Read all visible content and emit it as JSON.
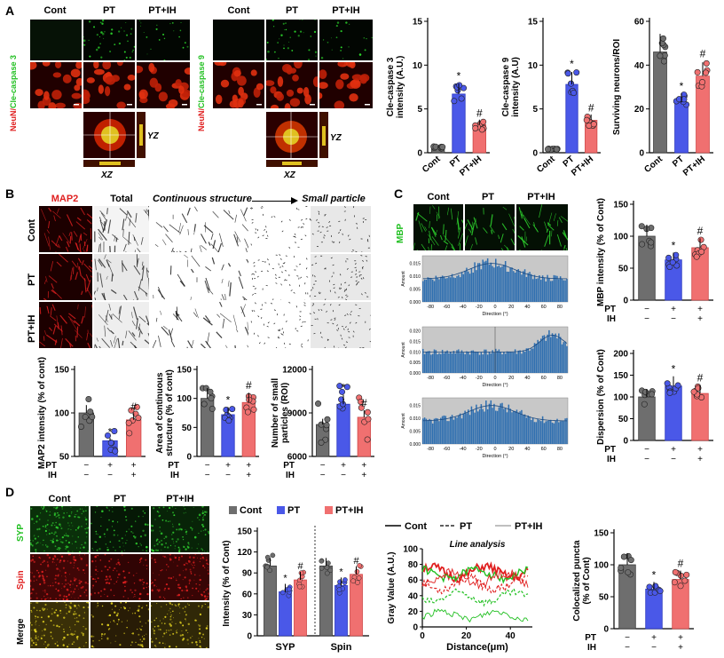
{
  "panels": {
    "a": "A",
    "b": "B",
    "c": "C",
    "d": "D"
  },
  "colors": {
    "cont": "#6e6e6e",
    "pt": "#4a58e8",
    "ptih": "#f07070",
    "green": "#22c022",
    "red": "#e02020"
  },
  "panelA": {
    "left": {
      "groups": [
        "Cont",
        "PT",
        "PT+IH"
      ],
      "side_a": "NeuN/",
      "side_b": "Cle-caspase 3"
    },
    "right": {
      "groups": [
        "Cont",
        "PT",
        "PT+IH"
      ],
      "side_a": "NeuN/",
      "side_b": "Cle-caspase 9"
    },
    "yz": "YZ",
    "xz": "XZ"
  },
  "panelB": {
    "rows": [
      "Cont",
      "PT",
      "PT+IH"
    ],
    "cols": {
      "map2": "MAP2",
      "total": "Total",
      "cont": "Continuous structure",
      "small": "Small particle"
    }
  },
  "panelC": {
    "groups": [
      "Cont",
      "PT",
      "PT+IH"
    ],
    "side": "MBP",
    "hist_xlabel": "Direction (°)",
    "hist_ylabel": "Amount"
  },
  "panelD": {
    "groups": [
      "Cont",
      "PT",
      "PT+IH"
    ],
    "rows": [
      "SYP",
      "Spin",
      "Merge"
    ],
    "legend": [
      "Cont",
      "PT",
      "PT+IH"
    ],
    "line_legend": [
      "Cont",
      "PT",
      "PT+IH"
    ],
    "line_title": "Line analysis",
    "line_xlabel": "Distance(μm)",
    "line_ylabel": "Gray Value (A.U.)"
  },
  "pt_ih_rows": {
    "pt": "PT",
    "ih": "IH",
    "pt_signs": [
      "−",
      "+",
      "+"
    ],
    "ih_signs": [
      "−",
      "−",
      "+"
    ]
  },
  "chart_data": [
    {
      "id": "a1",
      "type": "bar",
      "categories": [
        "Cont",
        "PT",
        "PT+IH"
      ],
      "values": [
        0.6,
        6.7,
        3.2
      ],
      "ylabel": "Cle-caspase 3 intensity (A.U.)",
      "ylim": [
        0,
        15
      ],
      "yticks": [
        0,
        5,
        10,
        15
      ],
      "marks": [
        "",
        "*",
        "#"
      ]
    },
    {
      "id": "a2",
      "type": "bar",
      "categories": [
        "Cont",
        "PT",
        "PT+IH"
      ],
      "values": [
        0.4,
        7.8,
        3.7
      ],
      "ylabel": "Cle-caspase 9 intensity (A.U)",
      "ylim": [
        0,
        15
      ],
      "yticks": [
        0,
        5,
        10,
        15
      ],
      "marks": [
        "",
        "*",
        "#"
      ]
    },
    {
      "id": "a3",
      "type": "bar",
      "categories": [
        "Cont",
        "PT",
        "PT+IH"
      ],
      "values": [
        46,
        23,
        35
      ],
      "ylabel": "Surviving neurons/ROI",
      "ylim": [
        0,
        60
      ],
      "yticks": [
        0,
        20,
        40,
        60
      ],
      "marks": [
        "",
        "*",
        "#"
      ]
    },
    {
      "id": "b1",
      "type": "bar",
      "categories": [
        "Cont",
        "PT",
        "PT+IH"
      ],
      "values": [
        100,
        68,
        92
      ],
      "ylabel": "MAP2 intensity (% of cont)",
      "ylim": [
        50,
        150
      ],
      "yticks": [
        50,
        100,
        150
      ],
      "marks": [
        "",
        "*",
        "#"
      ]
    },
    {
      "id": "b2",
      "type": "bar",
      "categories": [
        "Cont",
        "PT",
        "PT+IH"
      ],
      "values": [
        100,
        72,
        93
      ],
      "ylabel": "Area of continuous structure (% of cont)",
      "ylim": [
        0,
        150
      ],
      "yticks": [
        0,
        50,
        100,
        150
      ],
      "marks": [
        "",
        "*",
        "#"
      ]
    },
    {
      "id": "b3",
      "type": "bar",
      "categories": [
        "Cont",
        "PT",
        "PT+IH"
      ],
      "values": [
        8200,
        9600,
        8700
      ],
      "ylabel": "Number of small particles (ROI)",
      "ylim": [
        6000,
        12000
      ],
      "yticks": [
        6000,
        9000,
        12000
      ],
      "marks": [
        "",
        "*",
        "#"
      ]
    },
    {
      "id": "c1",
      "type": "bar",
      "categories": [
        "Cont",
        "PT",
        "PT+IH"
      ],
      "values": [
        100,
        63,
        82
      ],
      "ylabel": "MBP intensity (% of Cont)",
      "ylim": [
        0,
        150
      ],
      "yticks": [
        0,
        50,
        100,
        150
      ],
      "marks": [
        "",
        "*",
        "#"
      ]
    },
    {
      "id": "c2",
      "type": "bar",
      "categories": [
        "Cont",
        "PT",
        "PT+IH"
      ],
      "values": [
        100,
        125,
        108
      ],
      "ylabel": "Dispersion (% of Cont)",
      "ylim": [
        0,
        200
      ],
      "yticks": [
        0,
        50,
        100,
        150,
        200
      ],
      "marks": [
        "",
        "*",
        "#"
      ]
    },
    {
      "id": "d1",
      "type": "bar",
      "categories": [
        "SYP",
        "Spin"
      ],
      "series": [
        {
          "name": "Cont",
          "values": [
            100,
            100
          ]
        },
        {
          "name": "PT",
          "values": [
            63,
            72
          ]
        },
        {
          "name": "PT+IH",
          "values": [
            80,
            88
          ]
        }
      ],
      "ylabel": "Intensity (% of Cont)",
      "ylim": [
        0,
        150
      ],
      "yticks": [
        0,
        30,
        60,
        90,
        120,
        150
      ],
      "marks": [
        [
          "",
          "*",
          "#"
        ],
        [
          "",
          "*",
          "#"
        ]
      ]
    },
    {
      "id": "d2",
      "type": "bar",
      "categories": [
        "Cont",
        "PT",
        "PT+IH"
      ],
      "values": [
        100,
        62,
        77
      ],
      "ylabel": "Colocalized puncta (% of Cont)",
      "ylim": [
        0,
        150
      ],
      "yticks": [
        0,
        50,
        100,
        150
      ],
      "marks": [
        "",
        "*",
        "#"
      ]
    },
    {
      "id": "c_hist",
      "type": "bar",
      "xlabel": "Direction (°)",
      "ylabel": "Amount",
      "xticks": [
        -80,
        -60,
        -40,
        -20,
        0,
        20,
        40,
        60,
        80
      ],
      "hists": [
        {
          "yticks": [
            "0.000",
            "0.005",
            "0.010",
            "0.015"
          ],
          "ymax": 0.018,
          "shape": "center"
        },
        {
          "yticks": [
            "0.000",
            "0.005",
            "0.010",
            "0.015",
            "0.020"
          ],
          "ymax": 0.022,
          "shape": "right"
        },
        {
          "yticks": [
            "0.000",
            "0.005",
            "0.010",
            "0.015"
          ],
          "ymax": 0.018,
          "shape": "center2"
        }
      ]
    },
    {
      "id": "d_line",
      "type": "line",
      "title": "Line analysis",
      "xlabel": "Distance(μm)",
      "ylabel": "Gray Value (A.U.)",
      "xlim": [
        0,
        50
      ],
      "ylim": [
        0,
        100
      ],
      "xticks": [
        0,
        20,
        40
      ],
      "yticks": [
        0,
        20,
        40,
        60,
        80,
        100
      ]
    }
  ]
}
